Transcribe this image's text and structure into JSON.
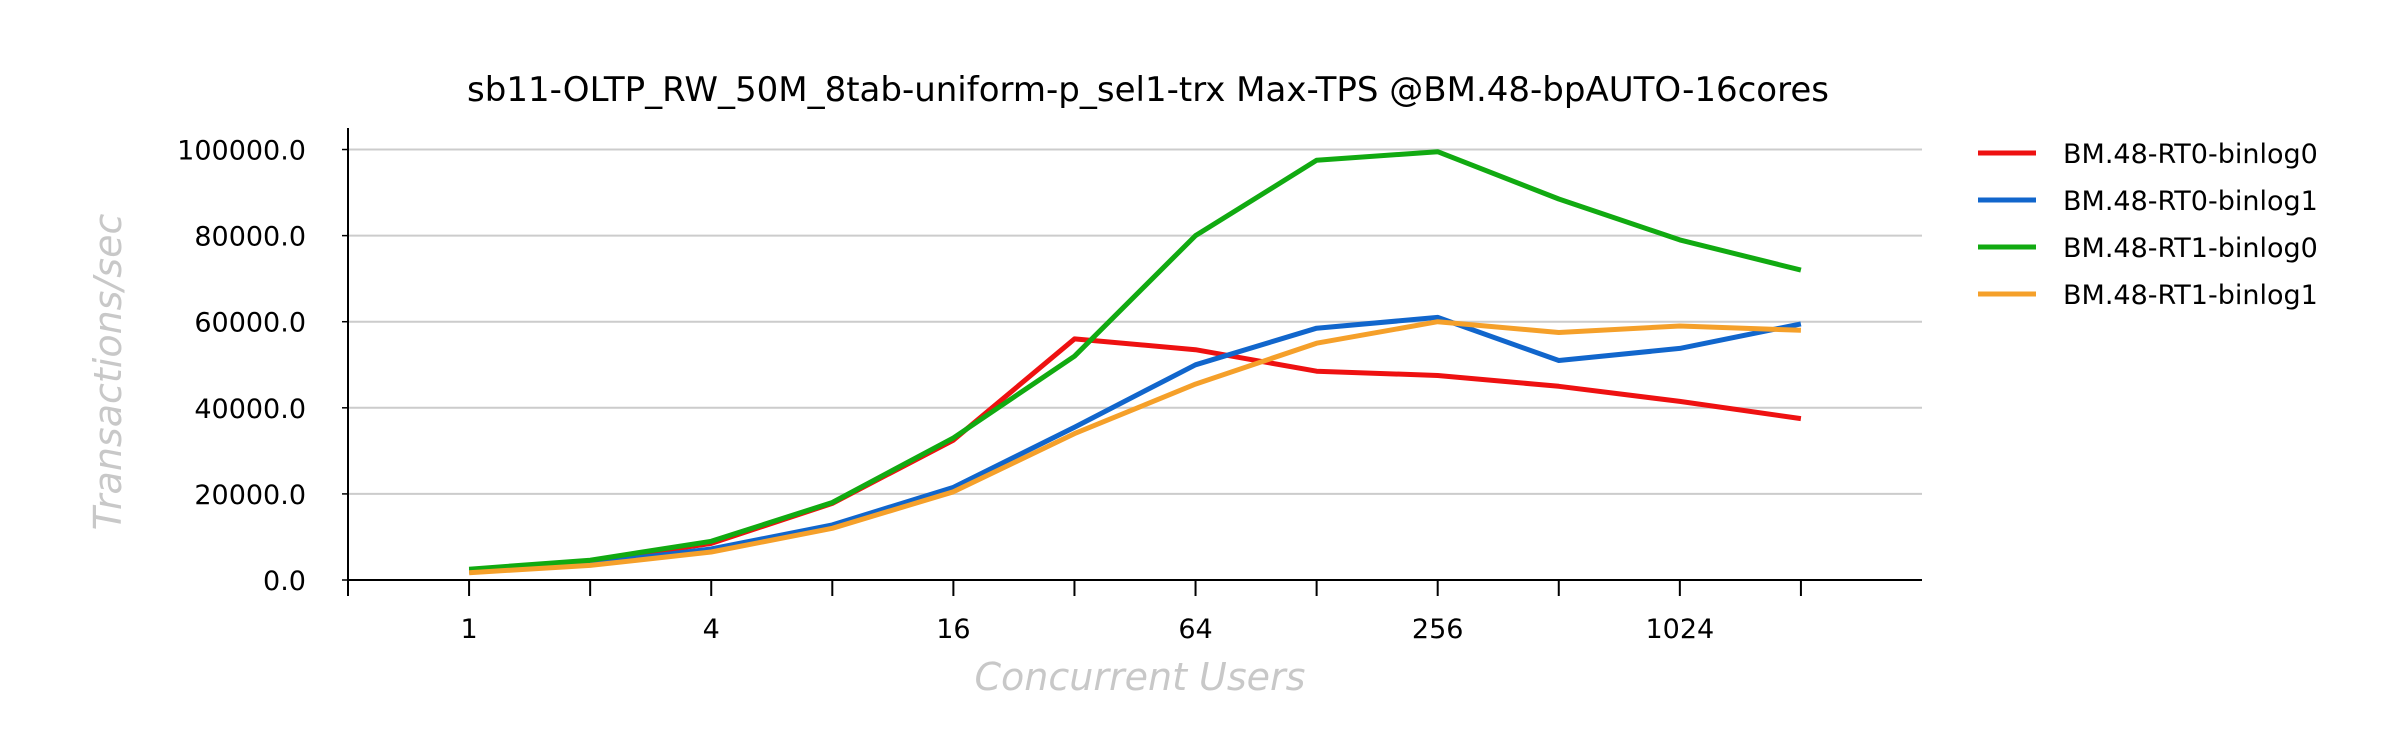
{
  "chart_data": {
    "type": "line",
    "title": "sb11-OLTP_RW_50M_8tab-uniform-p_sel1-trx Max-TPS @BM.48-bpAUTO-16cores",
    "xlabel": "Concurrent Users",
    "ylabel": "Transactions/sec",
    "x_scale": "log2",
    "x": [
      1,
      2,
      4,
      8,
      16,
      32,
      64,
      128,
      256,
      512,
      1024,
      2048
    ],
    "x_tick_labels": [
      "1",
      "4",
      "16",
      "64",
      "256",
      "1024"
    ],
    "x_tick_values": [
      1,
      4,
      16,
      64,
      256,
      1024
    ],
    "xlim": [
      0.5,
      4096
    ],
    "ylim": [
      0,
      105000
    ],
    "y_ticks": [
      0,
      20000,
      40000,
      60000,
      80000,
      100000
    ],
    "y_tick_labels": [
      "0.0",
      "20000.0",
      "40000.0",
      "60000.0",
      "80000.0",
      "100000.0"
    ],
    "grid": "horizontal",
    "legend_position": "right",
    "series": [
      {
        "name": "BM.48-RT0-binlog0",
        "color": "#ee1111",
        "values": [
          2300,
          4300,
          8500,
          17800,
          32500,
          56000,
          53500,
          48500,
          47500,
          45000,
          41500,
          37500
        ]
      },
      {
        "name": "BM.48-RT0-binlog1",
        "color": "#1166cc",
        "values": [
          2000,
          3800,
          7200,
          12800,
          21500,
          35500,
          50000,
          58500,
          61000,
          51000,
          53800,
          59500
        ]
      },
      {
        "name": "BM.48-RT1-binlog0",
        "color": "#11aa11",
        "values": [
          2500,
          4600,
          9000,
          18000,
          33000,
          52000,
          80000,
          97500,
          99500,
          88500,
          79000,
          72000
        ]
      },
      {
        "name": "BM.48-RT1-binlog1",
        "color": "#f5a02a",
        "values": [
          1700,
          3400,
          6500,
          12000,
          20500,
          34000,
          45500,
          55000,
          60000,
          57500,
          59000,
          58000
        ]
      }
    ]
  }
}
